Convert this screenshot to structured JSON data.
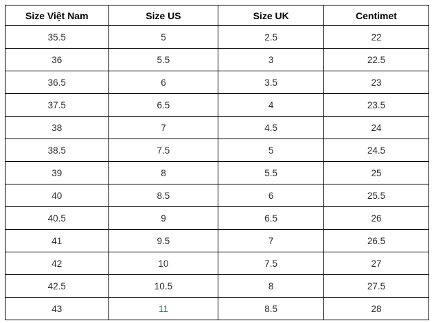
{
  "table": {
    "columns": [
      "Size Việt Nam",
      "Size US",
      "Size UK",
      "Centimet"
    ],
    "rows": [
      [
        "35.5",
        "5",
        "2.5",
        "22"
      ],
      [
        "36",
        "5.5",
        "3",
        "22.5"
      ],
      [
        "36.5",
        "6",
        "3.5",
        "23"
      ],
      [
        "37.5",
        "6.5",
        "4",
        "23.5"
      ],
      [
        "38",
        "7",
        "4.5",
        "24"
      ],
      [
        "38.5",
        "7.5",
        "5",
        "24.5"
      ],
      [
        "39",
        "8",
        "5.5",
        "25"
      ],
      [
        "40",
        "8.5",
        "6",
        "25.5"
      ],
      [
        "40.5",
        "9",
        "6.5",
        "26"
      ],
      [
        "41",
        "9.5",
        "7",
        "26.5"
      ],
      [
        "42",
        "10",
        "7.5",
        "27"
      ],
      [
        "42.5",
        "10.5",
        "8",
        "27.5"
      ],
      [
        "43",
        "11",
        "8.5",
        "28"
      ]
    ],
    "highlight_cell": {
      "row": 12,
      "col": 1,
      "color": "#3e7265"
    }
  },
  "colors": {
    "border": "#000000",
    "header_text": "#000000",
    "body_text": "#2b2b2b",
    "background": "#ffffff"
  }
}
